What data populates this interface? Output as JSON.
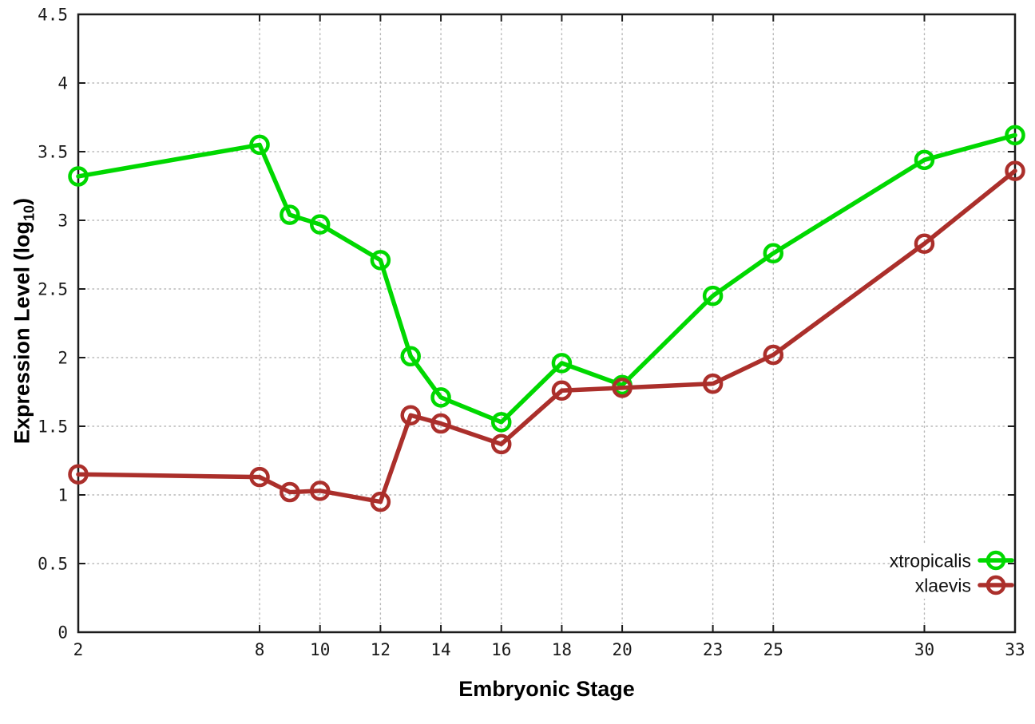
{
  "chart_data": {
    "type": "line",
    "title": "",
    "xlabel": "Embryonic Stage",
    "ylabel": "Expression Level (log10)",
    "ylabel_parts": {
      "prefix": "Expression Level (log",
      "sub": "10",
      "suffix": ")"
    },
    "xlim": [
      2,
      33
    ],
    "ylim": [
      0,
      4.5
    ],
    "x_ticks": [
      2,
      8,
      10,
      12,
      14,
      16,
      18,
      20,
      23,
      25,
      30,
      33
    ],
    "y_ticks": [
      0,
      0.5,
      1,
      1.5,
      2,
      2.5,
      3,
      3.5,
      4,
      4.5
    ],
    "grid": true,
    "legend_position": "bottom-right",
    "x": [
      2,
      8,
      9,
      10,
      12,
      13,
      14,
      16,
      18,
      20,
      23,
      25,
      30,
      33
    ],
    "series": [
      {
        "name": "xtropicalis",
        "color": "#00d800",
        "values": [
          3.32,
          3.55,
          3.04,
          2.97,
          2.71,
          2.01,
          1.71,
          1.53,
          1.96,
          1.8,
          2.45,
          2.76,
          3.44,
          3.62
        ]
      },
      {
        "name": "xlaevis",
        "color": "#ab2f2b",
        "values": [
          1.15,
          1.13,
          1.02,
          1.03,
          0.95,
          1.58,
          1.52,
          1.37,
          1.76,
          1.78,
          1.81,
          2.02,
          2.83,
          3.36
        ]
      }
    ],
    "colors": {
      "axis": "#1c1c1c",
      "grid": "#b8b8b8",
      "tick_text": "#1a1a1a"
    }
  }
}
